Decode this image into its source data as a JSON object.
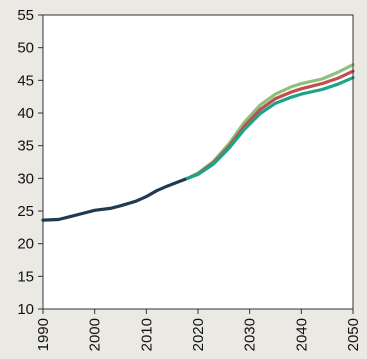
{
  "chart_data": {
    "type": "line",
    "title": "",
    "xlabel": "",
    "ylabel": "",
    "xlim": [
      1990,
      2050
    ],
    "ylim": [
      10,
      55
    ],
    "x_ticks": [
      "1990",
      "2000",
      "2010",
      "2020",
      "2030",
      "2040",
      "2050"
    ],
    "y_ticks": [
      "10",
      "15",
      "20",
      "25",
      "30",
      "35",
      "40",
      "45",
      "50",
      "55"
    ],
    "grid": false,
    "legend": "none",
    "series": [
      {
        "color": "#1f3a52",
        "x": [
          1990,
          1993,
          1995,
          1998,
          2000,
          2003,
          2005,
          2008,
          2010,
          2012,
          2014,
          2016,
          2018
        ],
        "y": [
          23.6,
          23.7,
          24.1,
          24.7,
          25.1,
          25.4,
          25.8,
          26.5,
          27.2,
          28.1,
          28.8,
          29.4,
          30.0
        ]
      },
      {
        "color": "#8ec07c",
        "x": [
          2018,
          2020,
          2023,
          2026,
          2029,
          2032,
          2035,
          2038,
          2040,
          2044,
          2047,
          2050
        ],
        "y": [
          30.0,
          30.8,
          32.6,
          35.3,
          38.6,
          41.2,
          42.9,
          44.0,
          44.5,
          45.2,
          46.2,
          47.4
        ]
      },
      {
        "color": "#c0504d",
        "x": [
          2018,
          2020,
          2023,
          2026,
          2029,
          2032,
          2035,
          2038,
          2040,
          2044,
          2047,
          2050
        ],
        "y": [
          30.0,
          30.7,
          32.4,
          34.9,
          38.0,
          40.5,
          42.2,
          43.2,
          43.7,
          44.5,
          45.3,
          46.4
        ]
      },
      {
        "color": "#1aa58a",
        "x": [
          2018,
          2020,
          2023,
          2026,
          2029,
          2032,
          2035,
          2038,
          2040,
          2044,
          2047,
          2050
        ],
        "y": [
          30.0,
          30.6,
          32.2,
          34.6,
          37.5,
          39.9,
          41.5,
          42.4,
          42.9,
          43.6,
          44.4,
          45.4
        ]
      }
    ]
  }
}
